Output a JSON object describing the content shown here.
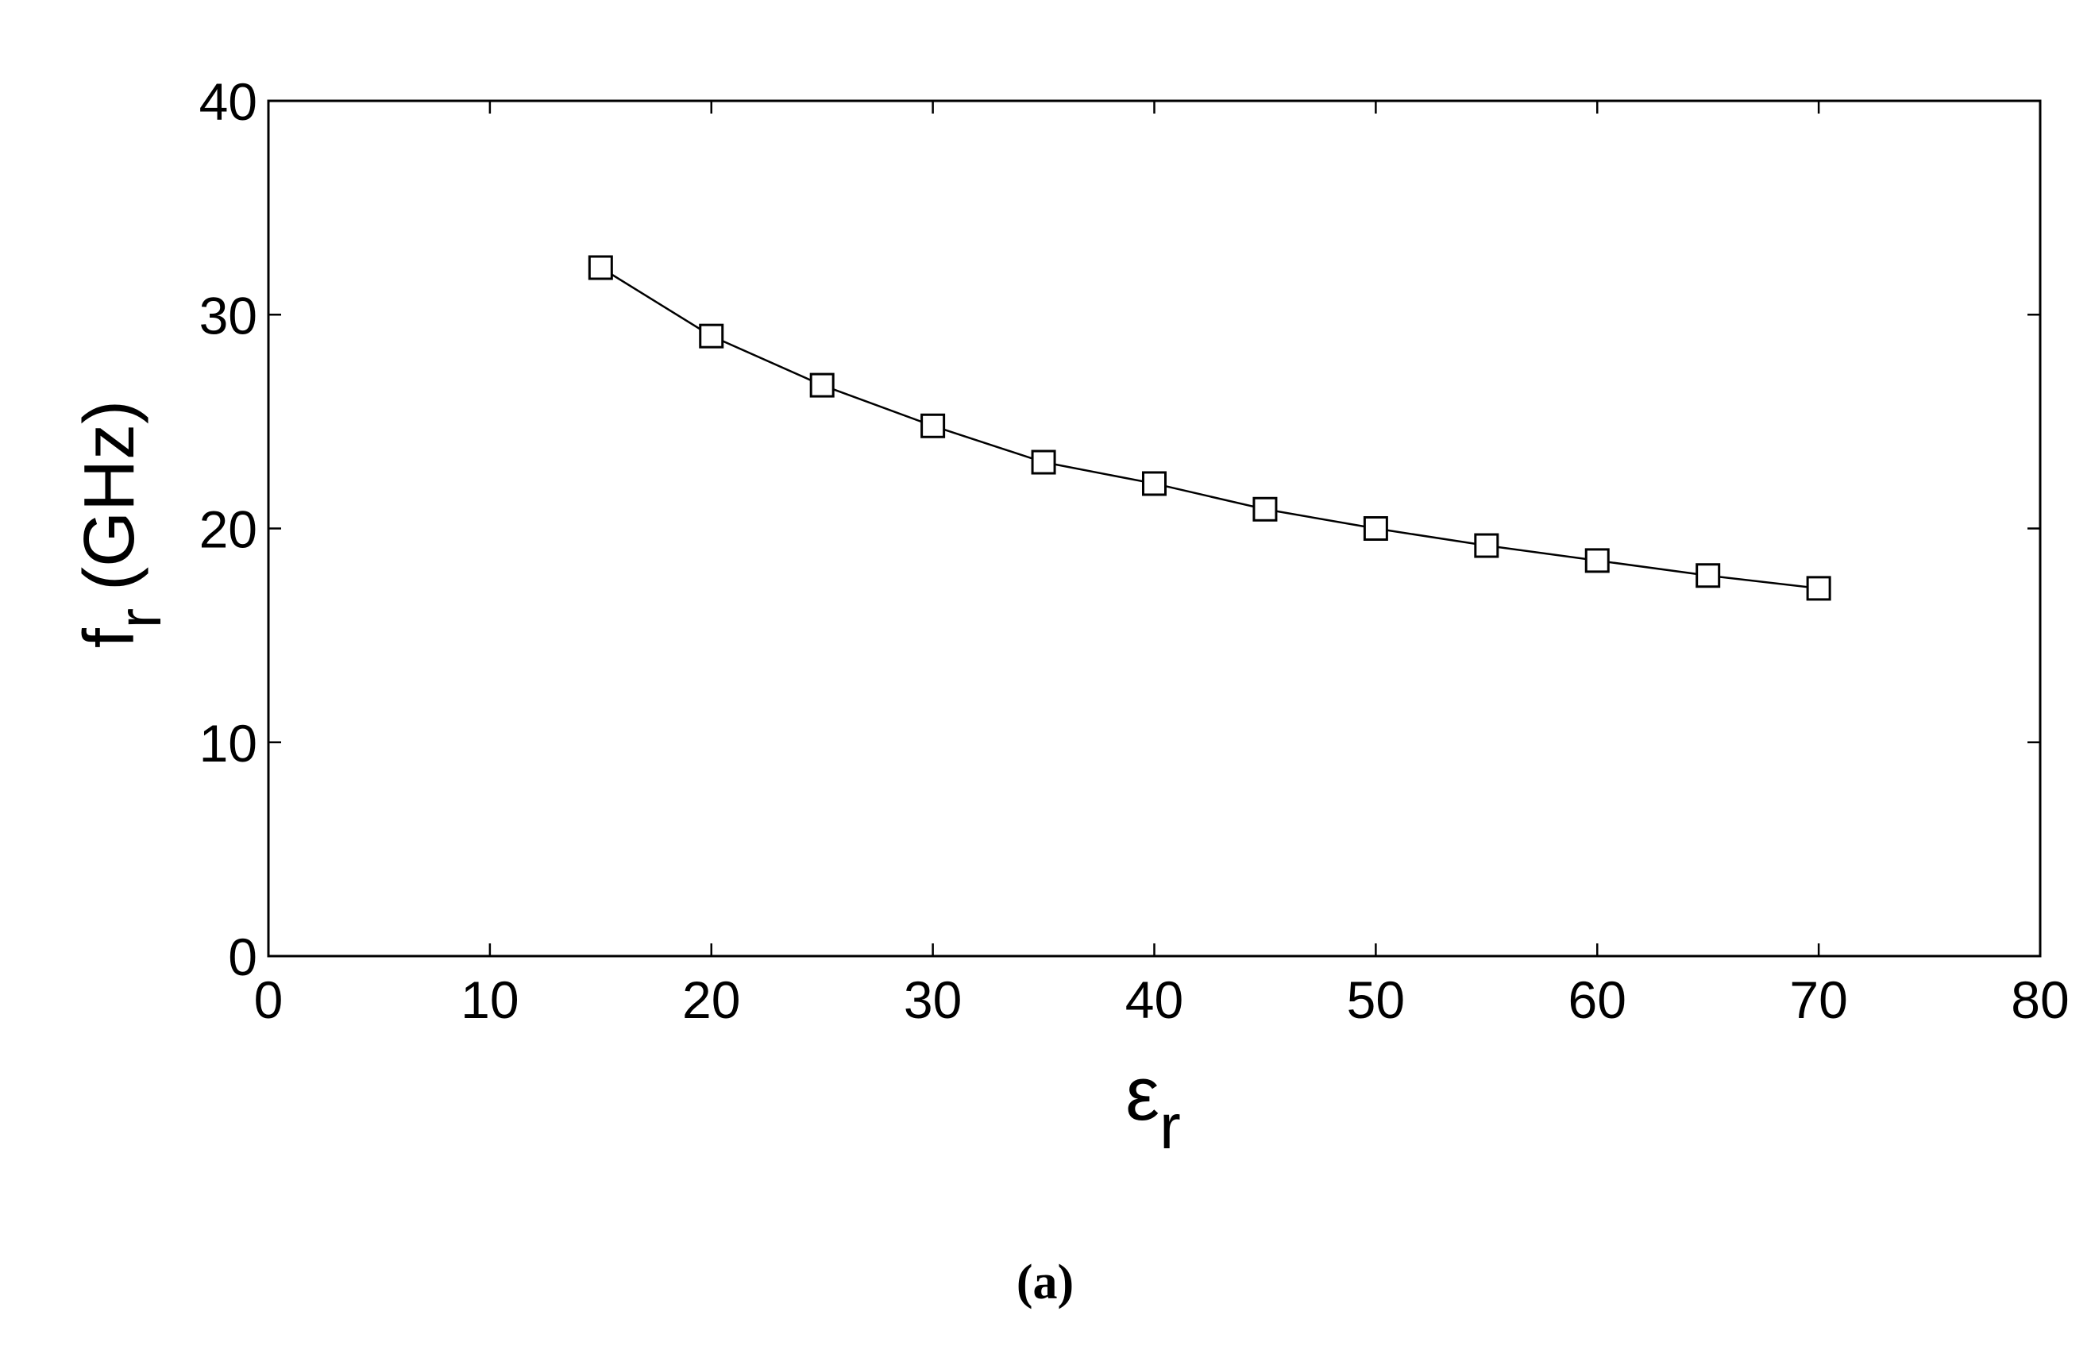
{
  "chart_data": {
    "type": "line",
    "title": "",
    "xlabel": "ε",
    "xlabel_sub": "r",
    "ylabel": "f",
    "ylabel_sub": "r",
    "ylabel_unit": "(GHz)",
    "xlim": [
      0,
      80
    ],
    "ylim": [
      0,
      40
    ],
    "xticks": [
      0,
      10,
      20,
      30,
      40,
      50,
      60,
      70,
      80
    ],
    "yticks": [
      0,
      10,
      20,
      30,
      40
    ],
    "grid": false,
    "marker": "square",
    "series": [
      {
        "x": [
          15,
          20,
          25,
          30,
          35,
          40,
          45,
          50,
          55,
          60,
          65,
          70
        ],
        "y": [
          32.2,
          29.0,
          26.7,
          24.8,
          23.1,
          22.1,
          20.9,
          20.0,
          19.2,
          18.5,
          17.8,
          17.2
        ]
      }
    ],
    "colors": {
      "line": "#000000",
      "marker_edge": "#000000",
      "axes": "#000000"
    }
  },
  "caption": "(a)"
}
